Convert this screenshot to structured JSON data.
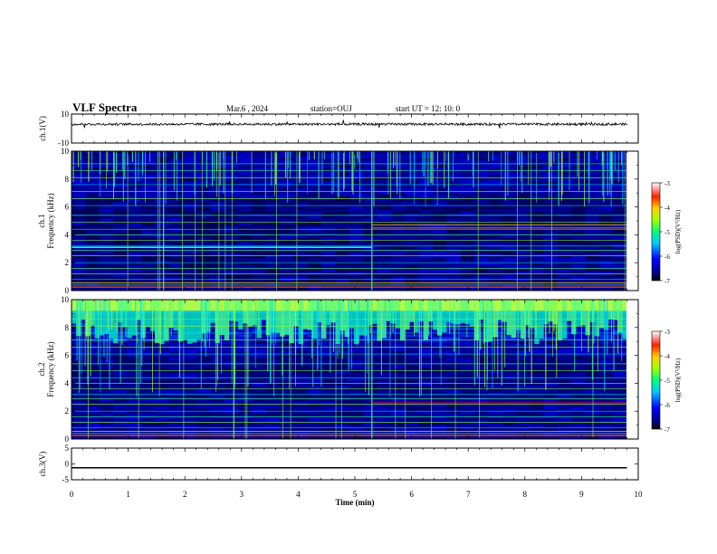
{
  "header": {
    "title": "VLF Spectra",
    "date": "Mar.6 , 2024",
    "station": "station=OUJ",
    "start_ut": "start UT = 12: 10: 0"
  },
  "chart_data": [
    {
      "type": "line",
      "ylabel": "ch.1(V)",
      "ylim": [
        -10,
        10
      ],
      "yticks": [
        "10",
        "-10"
      ],
      "xlim": [
        0,
        10
      ],
      "description_values": "noisy waveform near 3 V",
      "y_mean": 3
    },
    {
      "type": "heatmap",
      "ylabel": "ch.1 Frequency (kHz)",
      "ylim": [
        0,
        10
      ],
      "yticks": [
        "0",
        "2",
        "4",
        "6",
        "8",
        "10"
      ],
      "xlim": [
        0,
        10
      ],
      "data_end_min": 9.8,
      "colorbar": {
        "label": "log(PSD)(V²/Hz)",
        "ticks": [
          "-3",
          "-4",
          "-5",
          "-6",
          "-7"
        ],
        "range": [
          -7,
          -3
        ]
      }
    },
    {
      "type": "heatmap",
      "ylabel": "ch.2 Frequency (kHz)",
      "ylim": [
        0,
        10
      ],
      "yticks": [
        "0",
        "2",
        "4",
        "6",
        "8",
        "10"
      ],
      "xlim": [
        0,
        10
      ],
      "data_end_min": 9.8,
      "colorbar": {
        "label": "log(PSD)(V²/Hz)",
        "ticks": [
          "-3",
          "-4",
          "-5",
          "-6",
          "-7"
        ],
        "range": [
          -7,
          -3
        ]
      }
    },
    {
      "type": "line",
      "ylabel": "ch.3(V)",
      "ylim": [
        -5,
        5
      ],
      "yticks": [
        "5",
        "0",
        "-5"
      ],
      "xlim": [
        0,
        10
      ],
      "y_value": -1.2
    }
  ],
  "xaxis": {
    "label": "Time (min)",
    "ticks": [
      "0",
      "1",
      "2",
      "3",
      "4",
      "5",
      "6",
      "7",
      "8",
      "9",
      "10"
    ]
  },
  "colormap": [
    "#00007a",
    "#0000ff",
    "#0070ff",
    "#00e0ff",
    "#40ff80",
    "#c0ff00",
    "#ffd000",
    "#ff4000",
    "#e00000",
    "#ffffff"
  ]
}
